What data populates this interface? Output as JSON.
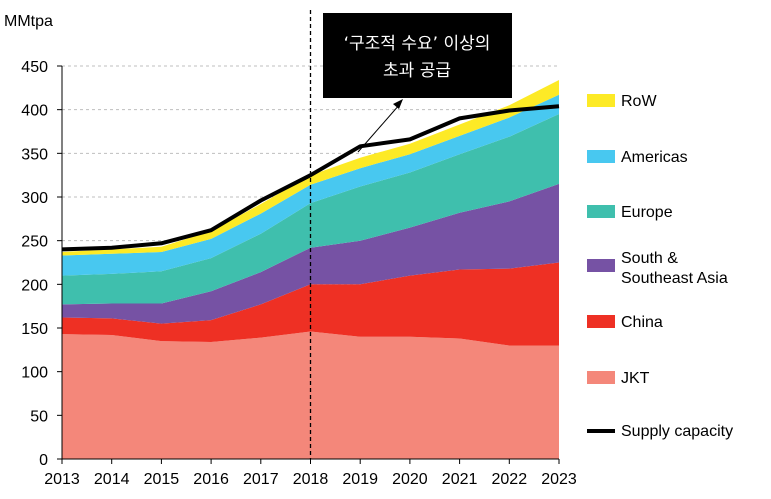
{
  "chart_data": {
    "type": "area",
    "stacked": true,
    "title": "",
    "xlabel": "",
    "ylabel": "MMtpa",
    "ylim": [
      0,
      450
    ],
    "yticks": [
      0,
      50,
      100,
      150,
      200,
      250,
      300,
      350,
      400,
      450
    ],
    "grid": "horizontal dashed",
    "legend_placement": "right",
    "categories": [
      "2013",
      "2014",
      "2015",
      "2016",
      "2017",
      "2018",
      "2019",
      "2020",
      "2021",
      "2022",
      "2023"
    ],
    "series": [
      {
        "name": "JKT",
        "color": "#f4877a",
        "values": [
          143,
          142,
          135,
          134,
          139,
          146,
          140,
          140,
          138,
          130,
          130
        ]
      },
      {
        "name": "China",
        "color": "#ee3024",
        "values": [
          19,
          19,
          20,
          25,
          38,
          54,
          60,
          70,
          79,
          88,
          95
        ]
      },
      {
        "name": "South & Southeast Asia",
        "color": "#7652a4",
        "values": [
          15,
          17,
          23,
          33,
          37,
          42,
          50,
          55,
          65,
          77,
          90
        ]
      },
      {
        "name": "Europe",
        "color": "#3fbfad",
        "values": [
          33,
          34,
          37,
          38,
          44,
          51,
          62,
          63,
          67,
          74,
          80
        ]
      },
      {
        "name": "Americas",
        "color": "#48c8f0",
        "values": [
          23,
          23,
          22,
          22,
          23,
          21,
          21,
          21,
          21,
          22,
          22
        ]
      },
      {
        "name": "RoW",
        "color": "#fdea26",
        "values": [
          4,
          5,
          6,
          9,
          11,
          11,
          12,
          12,
          13,
          14,
          17
        ]
      }
    ],
    "supply_capacity": {
      "name": "Supply capacity",
      "color": "#000000",
      "values": [
        240,
        242,
        247,
        262,
        296,
        325,
        358,
        366,
        390,
        399,
        404
      ]
    },
    "marker": {
      "x": "2018",
      "style": "dashed vertical line"
    },
    "annotation": {
      "line1": "‘구조적 수요’ 이상의",
      "line2": "초과 공급"
    }
  }
}
